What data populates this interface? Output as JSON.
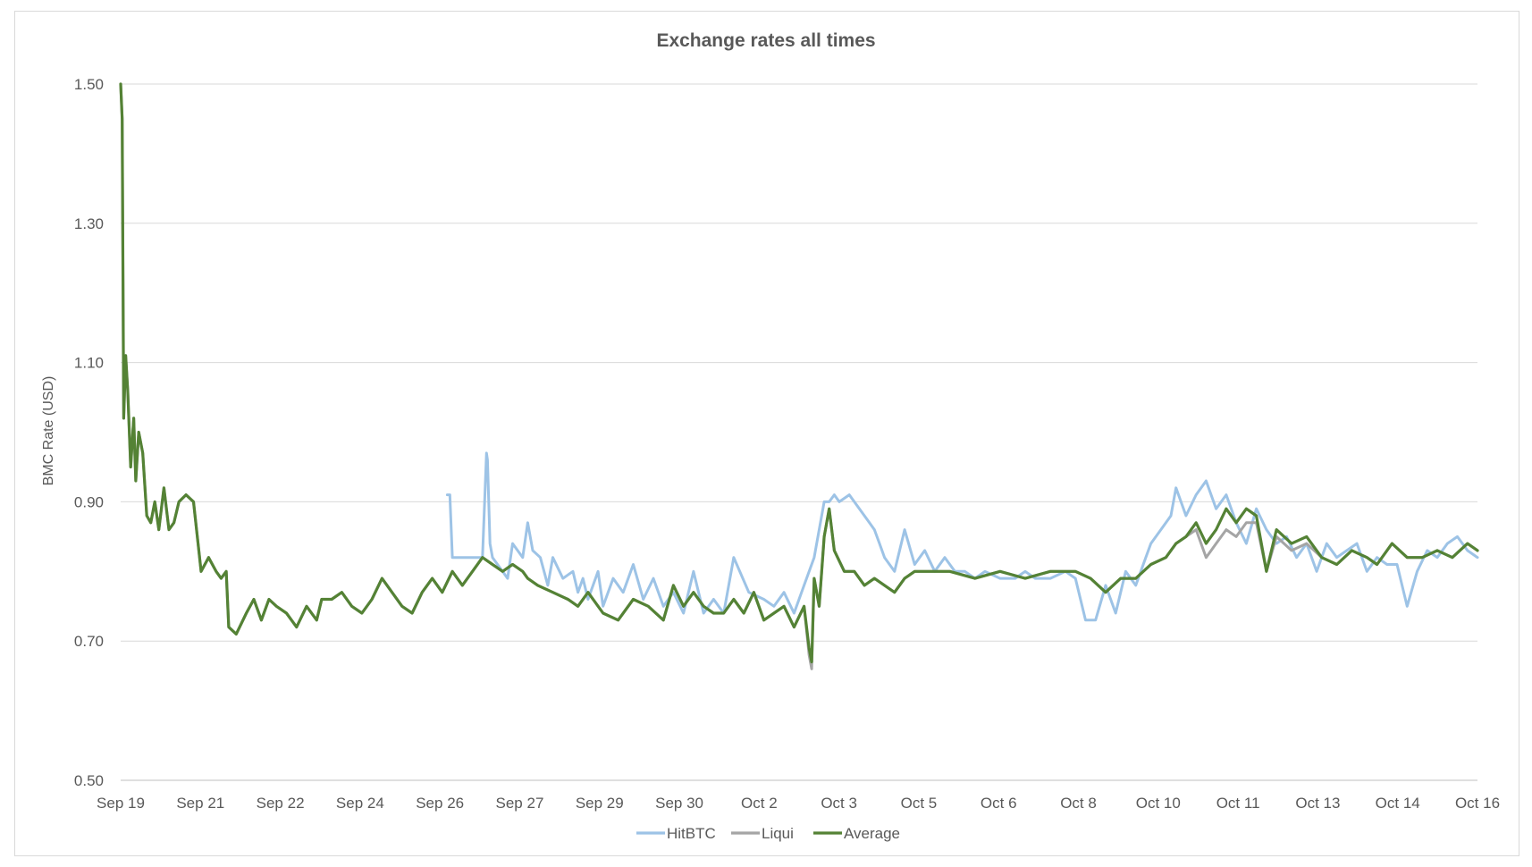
{
  "chart_data": {
    "type": "line",
    "title": "Exchange rates all times",
    "xlabel": "",
    "ylabel": "BMC Rate (USD)",
    "ylim": [
      0.5,
      1.5
    ],
    "yticks": [
      "0.50",
      "0.70",
      "0.90",
      "1.10",
      "1.30",
      "1.50"
    ],
    "ytick_values": [
      0.5,
      0.7,
      0.9,
      1.1,
      1.3,
      1.5
    ],
    "xlim": [
      0,
      27
    ],
    "categories": [
      "Sep 19",
      "Sep 21",
      "Sep 22",
      "Sep 24",
      "Sep 26",
      "Sep 27",
      "Sep 29",
      "Sep 30",
      "Oct 2",
      "Oct 3",
      "Oct 5",
      "Oct 6",
      "Oct 8",
      "Oct 10",
      "Oct 11",
      "Oct 13",
      "Oct 14",
      "Oct 16"
    ],
    "legend_position": "bottom",
    "grid": true,
    "series": [
      {
        "name": "HitBTC",
        "color": "#9dc3e6",
        "x": [
          6.5,
          6.55,
          6.6,
          6.65,
          7.0,
          7.2,
          7.28,
          7.3,
          7.35,
          7.4,
          7.6,
          7.7,
          7.8,
          8.0,
          8.1,
          8.2,
          8.35,
          8.5,
          8.6,
          8.8,
          9.0,
          9.1,
          9.2,
          9.3,
          9.5,
          9.6,
          9.8,
          10.0,
          10.2,
          10.4,
          10.6,
          10.8,
          11.0,
          11.2,
          11.4,
          11.6,
          11.8,
          12.0,
          12.2,
          12.5,
          12.8,
          13.0,
          13.2,
          13.4,
          13.6,
          13.8,
          14.0,
          14.1,
          14.2,
          14.3,
          14.5,
          14.7,
          14.9,
          15.0,
          15.1,
          15.2,
          15.4,
          15.6,
          15.8,
          16.0,
          16.2,
          16.4,
          16.6,
          16.8,
          17.0,
          17.2,
          17.5,
          17.8,
          18.0,
          18.2,
          18.5,
          18.8,
          19.0,
          19.2,
          19.4,
          19.6,
          19.8,
          20.0,
          20.2,
          20.4,
          20.5,
          20.7,
          20.9,
          21.0,
          21.2,
          21.4,
          21.6,
          21.8,
          22.0,
          22.2,
          22.4,
          22.6,
          22.8,
          23.0,
          23.2,
          23.4,
          23.6,
          23.8,
          24.0,
          24.2,
          24.4,
          24.6,
          24.8,
          25.0,
          25.2,
          25.4,
          25.6,
          25.8,
          26.0,
          26.2,
          26.4,
          26.6,
          26.8,
          27.0
        ],
        "y": [
          0.91,
          0.91,
          0.82,
          0.82,
          0.82,
          0.82,
          0.97,
          0.96,
          0.84,
          0.82,
          0.8,
          0.79,
          0.84,
          0.82,
          0.87,
          0.83,
          0.82,
          0.78,
          0.82,
          0.79,
          0.8,
          0.77,
          0.79,
          0.76,
          0.8,
          0.75,
          0.79,
          0.77,
          0.81,
          0.76,
          0.79,
          0.75,
          0.77,
          0.74,
          0.8,
          0.74,
          0.76,
          0.74,
          0.82,
          0.77,
          0.76,
          0.75,
          0.77,
          0.74,
          0.78,
          0.82,
          0.9,
          0.9,
          0.91,
          0.9,
          0.91,
          0.89,
          0.87,
          0.86,
          0.84,
          0.82,
          0.8,
          0.86,
          0.81,
          0.83,
          0.8,
          0.82,
          0.8,
          0.8,
          0.79,
          0.8,
          0.79,
          0.79,
          0.8,
          0.79,
          0.79,
          0.8,
          0.79,
          0.73,
          0.73,
          0.78,
          0.74,
          0.8,
          0.78,
          0.82,
          0.84,
          0.86,
          0.88,
          0.92,
          0.88,
          0.91,
          0.93,
          0.89,
          0.91,
          0.87,
          0.84,
          0.89,
          0.86,
          0.84,
          0.85,
          0.82,
          0.84,
          0.8,
          0.84,
          0.82,
          0.83,
          0.84,
          0.8,
          0.82,
          0.81,
          0.81,
          0.75,
          0.8,
          0.83,
          0.82,
          0.84,
          0.85,
          0.83,
          0.82
        ]
      },
      {
        "name": "Liqui",
        "color": "#a5a5a5",
        "x": [
          0.0,
          0.03,
          0.06,
          0.1,
          0.14,
          0.2,
          0.26,
          0.3,
          0.36,
          0.44,
          0.52,
          0.6,
          0.68,
          0.76,
          0.86,
          0.96,
          1.06,
          1.16,
          1.3,
          1.45,
          1.6,
          1.75,
          1.9,
          2.0,
          2.1,
          2.15,
          2.3,
          2.5,
          2.65,
          2.8,
          2.95,
          3.1,
          3.3,
          3.5,
          3.7,
          3.9,
          4.0,
          4.2,
          4.4,
          4.6,
          4.8,
          5.0,
          5.2,
          5.4,
          5.6,
          5.8,
          6.0,
          6.2,
          6.4,
          6.6,
          6.8,
          7.0,
          7.2,
          7.4,
          7.6,
          7.8,
          8.0,
          8.1,
          8.3,
          8.6,
          8.9,
          9.1,
          9.3,
          9.6,
          9.9,
          10.2,
          10.5,
          10.8,
          11.0,
          11.2,
          11.4,
          11.6,
          11.8,
          12.0,
          12.2,
          12.4,
          12.6,
          12.8,
          13.0,
          13.2,
          13.4,
          13.6,
          13.7,
          13.75,
          13.8,
          13.9,
          14.0,
          14.1,
          14.2,
          14.4,
          14.6,
          14.8,
          15.0,
          15.2,
          15.4,
          15.6,
          15.8,
          16.0,
          16.5,
          17.0,
          17.5,
          18.0,
          18.5,
          19.0,
          19.3,
          19.6,
          19.9,
          20.2,
          20.5,
          20.8,
          21.0,
          21.2,
          21.4,
          21.6,
          21.8,
          22.0,
          22.2,
          22.4,
          22.6,
          22.8,
          23.0,
          23.3,
          23.6,
          23.9,
          24.2,
          24.5,
          24.8,
          25.0,
          25.3,
          25.6,
          25.9,
          26.2,
          26.5,
          26.8,
          27.0
        ],
        "y": [
          1.5,
          1.45,
          1.02,
          1.11,
          1.06,
          0.95,
          1.02,
          0.93,
          1.0,
          0.97,
          0.88,
          0.87,
          0.9,
          0.86,
          0.92,
          0.86,
          0.87,
          0.9,
          0.91,
          0.9,
          0.8,
          0.82,
          0.8,
          0.79,
          0.8,
          0.72,
          0.71,
          0.74,
          0.76,
          0.73,
          0.76,
          0.75,
          0.74,
          0.72,
          0.75,
          0.73,
          0.76,
          0.76,
          0.77,
          0.75,
          0.74,
          0.76,
          0.79,
          0.77,
          0.75,
          0.74,
          0.77,
          0.79,
          0.77,
          0.8,
          0.78,
          0.8,
          0.82,
          0.81,
          0.8,
          0.81,
          0.8,
          0.79,
          0.78,
          0.77,
          0.76,
          0.75,
          0.77,
          0.74,
          0.73,
          0.76,
          0.75,
          0.73,
          0.78,
          0.75,
          0.77,
          0.75,
          0.74,
          0.74,
          0.76,
          0.74,
          0.77,
          0.73,
          0.74,
          0.75,
          0.72,
          0.75,
          0.68,
          0.66,
          0.79,
          0.75,
          0.85,
          0.89,
          0.83,
          0.8,
          0.8,
          0.78,
          0.79,
          0.78,
          0.77,
          0.79,
          0.8,
          0.8,
          0.8,
          0.79,
          0.8,
          0.79,
          0.8,
          0.8,
          0.79,
          0.77,
          0.79,
          0.79,
          0.81,
          0.82,
          0.84,
          0.85,
          0.86,
          0.82,
          0.84,
          0.86,
          0.85,
          0.87,
          0.87,
          0.8,
          0.85,
          0.83,
          0.84,
          0.82,
          0.81,
          0.83,
          0.82,
          0.81,
          0.84,
          0.82,
          0.82,
          0.83,
          0.82,
          0.84,
          0.83
        ]
      },
      {
        "name": "Average",
        "color": "#548235",
        "x": [
          0.0,
          0.03,
          0.06,
          0.1,
          0.14,
          0.2,
          0.26,
          0.3,
          0.36,
          0.44,
          0.52,
          0.6,
          0.68,
          0.76,
          0.86,
          0.96,
          1.06,
          1.16,
          1.3,
          1.45,
          1.6,
          1.75,
          1.9,
          2.0,
          2.1,
          2.15,
          2.3,
          2.5,
          2.65,
          2.8,
          2.95,
          3.1,
          3.3,
          3.5,
          3.7,
          3.9,
          4.0,
          4.2,
          4.4,
          4.6,
          4.8,
          5.0,
          5.2,
          5.4,
          5.6,
          5.8,
          6.0,
          6.2,
          6.4,
          6.6,
          6.8,
          7.0,
          7.2,
          7.4,
          7.6,
          7.8,
          8.0,
          8.1,
          8.3,
          8.6,
          8.9,
          9.1,
          9.3,
          9.6,
          9.9,
          10.2,
          10.5,
          10.8,
          11.0,
          11.2,
          11.4,
          11.6,
          11.8,
          12.0,
          12.2,
          12.4,
          12.6,
          12.8,
          13.0,
          13.2,
          13.4,
          13.6,
          13.7,
          13.75,
          13.8,
          13.9,
          14.0,
          14.1,
          14.2,
          14.4,
          14.6,
          14.8,
          15.0,
          15.2,
          15.4,
          15.6,
          15.8,
          16.0,
          16.5,
          17.0,
          17.5,
          18.0,
          18.5,
          19.0,
          19.3,
          19.6,
          19.9,
          20.2,
          20.5,
          20.8,
          21.0,
          21.2,
          21.4,
          21.6,
          21.8,
          22.0,
          22.2,
          22.4,
          22.6,
          22.8,
          23.0,
          23.3,
          23.6,
          23.9,
          24.2,
          24.5,
          24.8,
          25.0,
          25.3,
          25.6,
          25.9,
          26.2,
          26.5,
          26.8,
          27.0
        ],
        "y": [
          1.5,
          1.45,
          1.02,
          1.11,
          1.06,
          0.95,
          1.02,
          0.93,
          1.0,
          0.97,
          0.88,
          0.87,
          0.9,
          0.86,
          0.92,
          0.86,
          0.87,
          0.9,
          0.91,
          0.9,
          0.8,
          0.82,
          0.8,
          0.79,
          0.8,
          0.72,
          0.71,
          0.74,
          0.76,
          0.73,
          0.76,
          0.75,
          0.74,
          0.72,
          0.75,
          0.73,
          0.76,
          0.76,
          0.77,
          0.75,
          0.74,
          0.76,
          0.79,
          0.77,
          0.75,
          0.74,
          0.77,
          0.79,
          0.77,
          0.8,
          0.78,
          0.8,
          0.82,
          0.81,
          0.8,
          0.81,
          0.8,
          0.79,
          0.78,
          0.77,
          0.76,
          0.75,
          0.77,
          0.74,
          0.73,
          0.76,
          0.75,
          0.73,
          0.78,
          0.75,
          0.77,
          0.75,
          0.74,
          0.74,
          0.76,
          0.74,
          0.77,
          0.73,
          0.74,
          0.75,
          0.72,
          0.75,
          0.69,
          0.67,
          0.79,
          0.75,
          0.85,
          0.89,
          0.83,
          0.8,
          0.8,
          0.78,
          0.79,
          0.78,
          0.77,
          0.79,
          0.8,
          0.8,
          0.8,
          0.79,
          0.8,
          0.79,
          0.8,
          0.8,
          0.79,
          0.77,
          0.79,
          0.79,
          0.81,
          0.82,
          0.84,
          0.85,
          0.87,
          0.84,
          0.86,
          0.89,
          0.87,
          0.89,
          0.88,
          0.8,
          0.86,
          0.84,
          0.85,
          0.82,
          0.81,
          0.83,
          0.82,
          0.81,
          0.84,
          0.82,
          0.82,
          0.83,
          0.82,
          0.84,
          0.83
        ]
      }
    ]
  }
}
